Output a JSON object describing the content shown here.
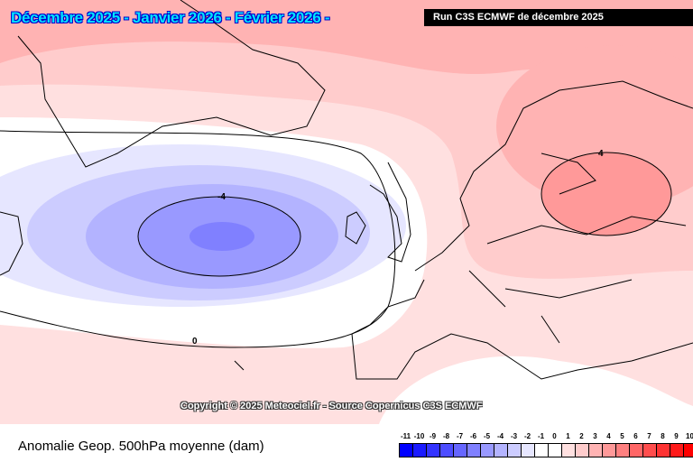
{
  "header": {
    "title": "Décembre 2025 - Janvier 2026 - Février 2026 -",
    "run_label": "Run C3S ECMWF de décembre 2025"
  },
  "map": {
    "contour_labels": [
      "-4",
      "0",
      "4"
    ],
    "copyright": "Copyright © 2025 Meteociel.fr - Source Copernicus C3S ECMWF"
  },
  "legend": {
    "caption": "Anomalie Geop. 500hPa moyenne (dam)",
    "labels": [
      "-11",
      "-10",
      "-9",
      "-8",
      "-7",
      "-6",
      "-5",
      "-4",
      "-3",
      "-2",
      "-1",
      "0",
      "1",
      "2",
      "3",
      "4",
      "5",
      "6",
      "7",
      "8",
      "9",
      "10"
    ],
    "colors": [
      "#0000ff",
      "#1a1aff",
      "#3333ff",
      "#4d4dff",
      "#6666ff",
      "#8080ff",
      "#9999ff",
      "#b3b3ff",
      "#ccccff",
      "#e6e6ff",
      "#ffffff",
      "#ffffff",
      "#ffe0e0",
      "#ffcccc",
      "#ffb3b3",
      "#ff9999",
      "#ff8080",
      "#ff6666",
      "#ff4d4d",
      "#ff3333",
      "#ff1a1a",
      "#ff0000"
    ]
  }
}
